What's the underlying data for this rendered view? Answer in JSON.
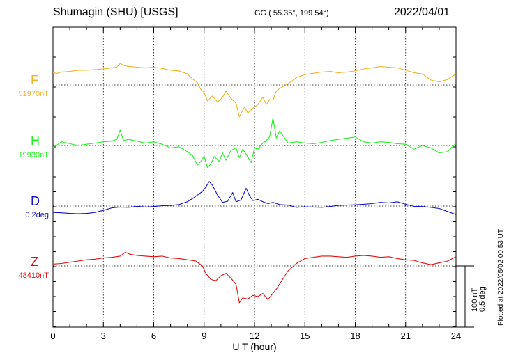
{
  "header": {
    "station": "Shumagin (SHU)  [USGS]",
    "coords": "GG ( 55.35°, 199.54°)",
    "date": "2022/04/01"
  },
  "footer": {
    "plotted_note": "Plotted at 2022/05/02 00:53 UT"
  },
  "colors": {
    "F": "#f2b322",
    "H": "#22ee22",
    "D": "#1010cc",
    "Z": "#e01010"
  },
  "chart_data": {
    "type": "line",
    "title": "Shumagin (SHU)  [USGS]",
    "xlabel": "U T (hour)",
    "xlim": [
      0,
      24
    ],
    "xticks": [
      0,
      3,
      6,
      9,
      12,
      15,
      18,
      21,
      24
    ],
    "xtick_labels": [
      "0",
      "3",
      "6",
      "9",
      "12",
      "15",
      "18",
      "21",
      "24"
    ],
    "grid": true,
    "scale_bar": {
      "nT": "100 nT",
      "deg": "0.5 deg",
      "nT_value": 100,
      "deg_value": 0.5
    },
    "series": [
      {
        "name": "F",
        "baseline_label": "51970nT",
        "baseline": 51970,
        "unit": "nT",
        "x": [
          0,
          0.25,
          0.5,
          1,
          1.5,
          2,
          2.5,
          3,
          3.5,
          3.8,
          4,
          4.3,
          4.6,
          5,
          5.5,
          6,
          6.5,
          7,
          7.5,
          8,
          8.3,
          8.6,
          8.8,
          9.0,
          9.2,
          9.5,
          9.8,
          10.1,
          10.3,
          10.6,
          10.9,
          11.1,
          11.4,
          11.6,
          11.9,
          12.2,
          12.5,
          12.7,
          12.9,
          13.1,
          13.3,
          13.6,
          14,
          14.5,
          15,
          15.5,
          16,
          16.5,
          17,
          17.5,
          18,
          18.5,
          19,
          19.5,
          20,
          20.5,
          21,
          21.5,
          22,
          22.5,
          23,
          23.5,
          24
        ],
        "values": [
          20,
          19,
          21,
          22,
          24,
          24,
          25,
          26,
          28,
          29,
          35,
          31,
          30,
          29,
          28,
          29,
          27,
          24,
          23,
          18,
          10,
          4,
          -7,
          -12,
          -26,
          -18,
          -28,
          -20,
          -10,
          -22,
          -30,
          -52,
          -36,
          -46,
          -38,
          -32,
          -20,
          -32,
          -24,
          -25,
          -10,
          -4,
          2,
          12,
          17,
          19,
          21,
          22,
          20,
          21,
          23,
          26,
          28,
          30,
          29,
          28,
          24,
          20,
          18,
          8,
          5,
          9,
          18
        ]
      },
      {
        "name": "H",
        "baseline_label": "19930nT",
        "baseline": 19930,
        "unit": "nT",
        "x": [
          0,
          0.3,
          0.5,
          1,
          1.5,
          2,
          2.5,
          3,
          3.5,
          3.8,
          4,
          4.2,
          4.5,
          5,
          5.5,
          6,
          6.5,
          7,
          7.5,
          8,
          8.3,
          8.6,
          8.8,
          9.0,
          9.2,
          9.4,
          9.6,
          9.9,
          10.1,
          10.3,
          10.6,
          10.9,
          11.1,
          11.3,
          11.5,
          11.8,
          12.0,
          12.2,
          12.5,
          12.7,
          12.9,
          13.1,
          13.3,
          13.5,
          14,
          14.5,
          15,
          15.5,
          16,
          16.5,
          17,
          17.5,
          18,
          18.5,
          19,
          19.5,
          20,
          20.5,
          21,
          21.5,
          22,
          22.5,
          23,
          23.5,
          24
        ],
        "values": [
          -3,
          2,
          6,
          3,
          0,
          2,
          4,
          6,
          7,
          10,
          25,
          8,
          10,
          7,
          4,
          6,
          2,
          -4,
          -2,
          -10,
          -16,
          -32,
          -26,
          -18,
          -36,
          -30,
          -18,
          -26,
          -12,
          -24,
          -8,
          -4,
          -20,
          -6,
          -14,
          -28,
          -4,
          -6,
          4,
          8,
          14,
          45,
          12,
          24,
          4,
          6,
          4,
          3,
          5,
          8,
          10,
          12,
          14,
          6,
          4,
          6,
          5,
          3,
          2,
          -6,
          0,
          -4,
          -12,
          -10,
          4
        ]
      },
      {
        "name": "D",
        "baseline_label": "0.2deg",
        "baseline": 0.2,
        "unit": "deg",
        "x": [
          0,
          0.5,
          1,
          1.5,
          2,
          2.5,
          3,
          3.5,
          4,
          4.5,
          5,
          5.5,
          6,
          6.5,
          7,
          7.5,
          8,
          8.3,
          8.6,
          8.9,
          9.1,
          9.3,
          9.5,
          9.8,
          10.1,
          10.4,
          10.7,
          10.9,
          11.2,
          11.5,
          11.7,
          11.9,
          12.2,
          12.5,
          12.8,
          13.1,
          13.5,
          14,
          14.5,
          15,
          15.5,
          16,
          16.5,
          17,
          17.5,
          18,
          18.5,
          19,
          19.5,
          20,
          20.5,
          21,
          21.5,
          22,
          22.5,
          23,
          23.5,
          24
        ],
        "values": [
          -0.052,
          -0.055,
          -0.06,
          -0.063,
          -0.06,
          -0.052,
          -0.035,
          -0.015,
          -0.008,
          -0.01,
          -0.002,
          -0.008,
          -0.004,
          0.002,
          0.005,
          0.012,
          0.035,
          0.06,
          0.09,
          0.12,
          0.155,
          0.2,
          0.17,
          0.09,
          0.03,
          0.04,
          0.11,
          0.035,
          0.05,
          0.145,
          0.085,
          0.045,
          0.055,
          0.035,
          0.02,
          0.03,
          0.012,
          0.008,
          -0.01,
          -0.006,
          -0.008,
          -0.01,
          -0.004,
          0.006,
          0.008,
          0.01,
          0.015,
          0.02,
          0.03,
          0.025,
          0.035,
          0.015,
          -0.002,
          -0.004,
          -0.01,
          -0.02,
          -0.045,
          -0.07
        ]
      },
      {
        "name": "Z",
        "baseline_label": "48410nT",
        "baseline": 48410,
        "unit": "nT",
        "x": [
          0,
          0.5,
          1,
          1.5,
          2,
          2.5,
          3,
          3.5,
          4,
          4.3,
          4.6,
          5,
          5.5,
          6,
          6.5,
          7,
          7.5,
          8,
          8.5,
          8.9,
          9.1,
          9.4,
          9.7,
          10,
          10.3,
          10.6,
          10.9,
          11.1,
          11.3,
          11.6,
          11.9,
          12.2,
          12.5,
          12.8,
          13.0,
          13.3,
          13.6,
          14,
          14.5,
          15,
          15.5,
          16,
          16.5,
          17,
          17.5,
          18,
          18.5,
          19,
          19.5,
          20,
          20.5,
          21,
          21.5,
          22,
          22.5,
          23,
          23.5,
          24
        ],
        "values": [
          3,
          4,
          6,
          8,
          10,
          11,
          13,
          14,
          16,
          22,
          19,
          17,
          16,
          15,
          16,
          13,
          12,
          10,
          8,
          0,
          -12,
          -22,
          -24,
          -16,
          -12,
          -20,
          -30,
          -60,
          -52,
          -54,
          -48,
          -50,
          -45,
          -55,
          -48,
          -38,
          -25,
          -8,
          4,
          12,
          14,
          16,
          16,
          15,
          14,
          16,
          17,
          16,
          14,
          15,
          12,
          10,
          9,
          5,
          2,
          5,
          8,
          15
        ]
      }
    ]
  }
}
